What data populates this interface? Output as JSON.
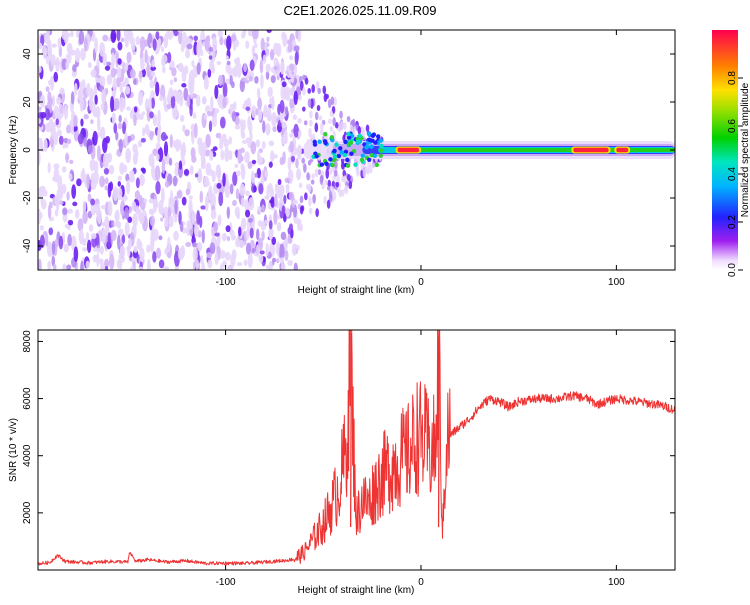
{
  "title": "C2E1.2026.025.11.09.R09",
  "chart_data": [
    {
      "type": "heatmap",
      "xlabel": "Height of straight line (km)",
      "ylabel": "Frequency (Hz)",
      "xlim": [
        -196,
        130
      ],
      "ylim": [
        -50,
        50
      ],
      "xticks": [
        -100,
        0,
        100
      ],
      "yticks": [
        -40,
        -20,
        0,
        20,
        40
      ],
      "colorbar": {
        "label": "Normalized spectral amplitude",
        "range": [
          0,
          1
        ],
        "ticks": [
          0.0,
          0.2,
          0.4,
          0.6,
          0.8
        ]
      },
      "features": {
        "noise_region_x": [
          -196,
          -62
        ],
        "transition_x": [
          -62,
          -20
        ],
        "tone_center_hz": 0,
        "tone_strong_segments_x": [
          [
            -12,
            -1
          ],
          [
            78,
            96
          ],
          [
            100,
            106
          ]
        ]
      }
    },
    {
      "type": "line",
      "xlabel": "Height of straight line (km)",
      "ylabel": "SNR (10 * v/v)",
      "xlim": [
        -196,
        130
      ],
      "ylim": [
        0,
        8400
      ],
      "xticks": [
        -100,
        0,
        100
      ],
      "yticks": [
        2000,
        4000,
        6000,
        8000
      ],
      "color": "#ee3333",
      "points": [
        [
          -196,
          220
        ],
        [
          -190,
          260
        ],
        [
          -186,
          520
        ],
        [
          -182,
          300
        ],
        [
          -170,
          250
        ],
        [
          -160,
          300
        ],
        [
          -150,
          280
        ],
        [
          -149,
          620
        ],
        [
          -146,
          300
        ],
        [
          -140,
          360
        ],
        [
          -130,
          280
        ],
        [
          -120,
          320
        ],
        [
          -110,
          230
        ],
        [
          -100,
          240
        ],
        [
          -90,
          230
        ],
        [
          -80,
          280
        ],
        [
          -70,
          330
        ],
        [
          -65,
          380
        ],
        [
          -60,
          600
        ],
        [
          -55,
          1100
        ],
        [
          -50,
          1600
        ],
        [
          -46,
          2200
        ],
        [
          -42,
          2900
        ],
        [
          -40,
          3600
        ],
        [
          -38,
          4300
        ],
        [
          -36,
          8300
        ],
        [
          -35,
          5200
        ],
        [
          -33,
          1800
        ],
        [
          -30,
          2500
        ],
        [
          -27,
          2300
        ],
        [
          -24,
          2800
        ],
        [
          -20,
          3300
        ],
        [
          -15,
          3600
        ],
        [
          -10,
          3900
        ],
        [
          -6,
          4100
        ],
        [
          -2,
          4700
        ],
        [
          2,
          4500
        ],
        [
          5,
          4100
        ],
        [
          8,
          4400
        ],
        [
          9,
          8200
        ],
        [
          11,
          1200
        ],
        [
          13,
          4600
        ],
        [
          18,
          4900
        ],
        [
          25,
          5300
        ],
        [
          30,
          5700
        ],
        [
          35,
          6000
        ],
        [
          40,
          5900
        ],
        [
          45,
          5700
        ],
        [
          50,
          5900
        ],
        [
          60,
          6000
        ],
        [
          70,
          6000
        ],
        [
          78,
          6100
        ],
        [
          85,
          6000
        ],
        [
          90,
          5800
        ],
        [
          95,
          5900
        ],
        [
          100,
          6000
        ],
        [
          110,
          5900
        ],
        [
          120,
          5800
        ],
        [
          126,
          5700
        ],
        [
          130,
          5600
        ]
      ]
    }
  ]
}
